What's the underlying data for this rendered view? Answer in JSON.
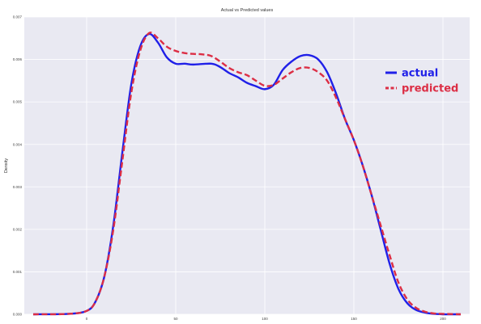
{
  "chart_data": {
    "type": "line",
    "title": "Actual vs Predicted values",
    "xlabel": "",
    "ylabel": "Density",
    "xlim": [
      -35,
      215
    ],
    "ylim": [
      0,
      0.007
    ],
    "x_ticks": [
      0,
      50,
      100,
      150,
      200
    ],
    "x_tick_labels": [
      "0",
      "50",
      "100",
      "150",
      "200"
    ],
    "y_ticks": [
      0.0,
      0.001,
      0.002,
      0.003,
      0.004,
      0.005,
      0.006,
      0.007
    ],
    "y_tick_labels": [
      "0.000",
      "0.001",
      "0.002",
      "0.003",
      "0.004",
      "0.005",
      "0.006",
      "0.007"
    ],
    "grid": true,
    "legend_position": "right",
    "background": "#e9e9f2",
    "series": [
      {
        "name": "actual",
        "color": "#2020e8",
        "style": "solid",
        "x": [
          -30,
          -10,
          0,
          5,
          10,
          15,
          20,
          25,
          30,
          35,
          40,
          45,
          50,
          55,
          60,
          70,
          75,
          80,
          85,
          90,
          95,
          100,
          105,
          110,
          115,
          120,
          125,
          130,
          135,
          140,
          145,
          150,
          155,
          160,
          165,
          170,
          175,
          180,
          185,
          190,
          195,
          200,
          205,
          210
        ],
        "values": [
          0.0,
          1e-05,
          8e-05,
          0.0003,
          0.0009,
          0.0021,
          0.0038,
          0.0054,
          0.0063,
          0.0066,
          0.0064,
          0.00605,
          0.0059,
          0.0059,
          0.00588,
          0.0059,
          0.00582,
          0.00568,
          0.00558,
          0.00545,
          0.00537,
          0.0053,
          0.0054,
          0.00575,
          0.00595,
          0.00608,
          0.0061,
          0.006,
          0.0057,
          0.0052,
          0.0046,
          0.0041,
          0.0035,
          0.0028,
          0.002,
          0.0012,
          0.0006,
          0.00026,
          0.0001,
          4e-05,
          1e-05,
          0.0,
          0.0,
          0.0
        ]
      },
      {
        "name": "predicted",
        "color": "#dc2e45",
        "style": "dashed",
        "x": [
          -30,
          -10,
          0,
          5,
          10,
          15,
          20,
          25,
          30,
          35,
          40,
          45,
          50,
          55,
          60,
          65,
          70,
          75,
          80,
          85,
          90,
          95,
          100,
          105,
          110,
          115,
          120,
          125,
          130,
          135,
          140,
          145,
          150,
          155,
          160,
          165,
          170,
          175,
          180,
          185,
          190,
          195,
          200,
          210
        ],
        "values": [
          0.0,
          1e-05,
          8e-05,
          0.0003,
          0.0009,
          0.002,
          0.0036,
          0.0052,
          0.0062,
          0.00662,
          0.0065,
          0.0063,
          0.0062,
          0.00615,
          0.00613,
          0.00612,
          0.00608,
          0.00595,
          0.0058,
          0.0057,
          0.00563,
          0.0055,
          0.00538,
          0.0054,
          0.00555,
          0.0057,
          0.0058,
          0.0058,
          0.0057,
          0.0055,
          0.0051,
          0.0046,
          0.0041,
          0.0035,
          0.0028,
          0.0021,
          0.0014,
          0.00075,
          0.00035,
          0.00015,
          6e-05,
          2e-05,
          1e-05,
          0.0
        ]
      }
    ]
  }
}
